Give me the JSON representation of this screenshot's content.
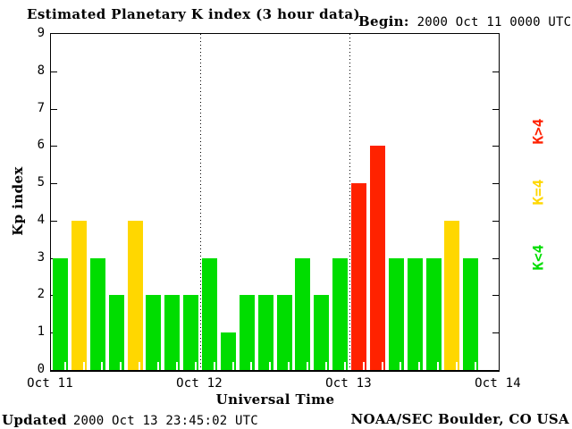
{
  "header": {
    "title": "Estimated Planetary K index (3 hour data)",
    "begin_label": "Begin:",
    "begin_value": "2000 Oct 11 0000 UTC"
  },
  "footer": {
    "updated_label": "Updated",
    "updated_value": "2000 Oct 13 23:45:02 UTC",
    "credit": "NOAA/SEC Boulder, CO USA"
  },
  "chart_data": {
    "type": "bar",
    "title": "Estimated Planetary K index (3 hour data)",
    "xlabel": "Universal Time",
    "ylabel": "Kp index",
    "ylim": [
      0,
      9
    ],
    "y_ticks": [
      0,
      1,
      2,
      3,
      4,
      5,
      6,
      7,
      8,
      9
    ],
    "x_tick_labels": [
      "Oct 11",
      "Oct 12",
      "Oct 13",
      "Oct 14"
    ],
    "slots_per_day": 8,
    "hours_per_slot": 3,
    "values": [
      3,
      4,
      3,
      2,
      4,
      2,
      2,
      2,
      3,
      1,
      2,
      2,
      2,
      3,
      2,
      3,
      5,
      6,
      3,
      3,
      3,
      4,
      3
    ],
    "color_rules": {
      "below_4": "#00dd00",
      "equal_4": "#ffd700",
      "above_4": "#ff2200"
    },
    "legend": [
      {
        "label": "K>4",
        "color": "#ff2200"
      },
      {
        "label": "K=4",
        "color": "#ffd700"
      },
      {
        "label": "K<4",
        "color": "#00dd00"
      }
    ],
    "legend_position": "right",
    "grid": "day-boundaries-dotted"
  }
}
